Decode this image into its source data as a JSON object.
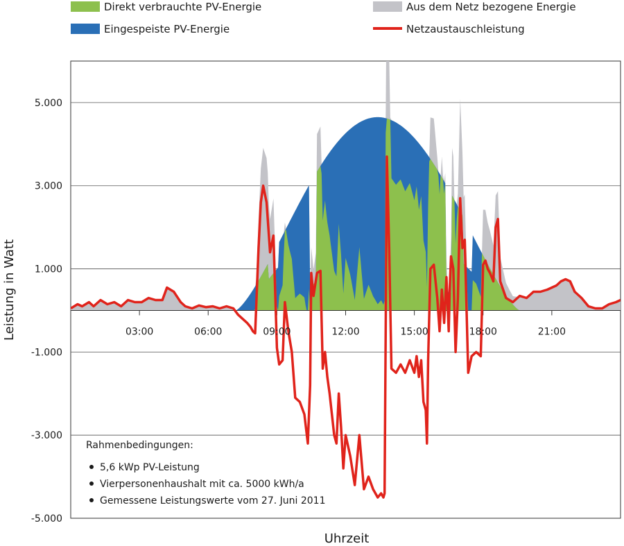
{
  "chart_data": {
    "type": "area",
    "xlabel": "Uhrzeit",
    "ylabel": "Leistung in Watt",
    "xlim": [
      0,
      24
    ],
    "ylim": [
      -5000,
      6000
    ],
    "x_ticks": [
      3,
      6,
      9,
      12,
      15,
      18,
      21
    ],
    "x_tick_labels": [
      "03:00",
      "06:00",
      "09:00",
      "12:00",
      "15:00",
      "18:00",
      "21:00"
    ],
    "y_ticks": [
      5000,
      3000,
      1000,
      -1000,
      -3000,
      -5000
    ],
    "y_tick_labels": [
      "5.000",
      "3.000",
      "1.000",
      "-1.000",
      "-3.000",
      "-5.000"
    ],
    "grid": true,
    "legend_position": "top",
    "colors": {
      "direct": "#8dc04d",
      "feedin": "#2a6fb6",
      "grid": "#c3c3c8",
      "exchange": "#e0231b"
    },
    "legend": [
      {
        "key": "direct",
        "label": "Direkt verbrauchte PV-Energie",
        "kind": "area"
      },
      {
        "key": "grid",
        "label": "Aus dem Netz bezogene Energie",
        "kind": "area"
      },
      {
        "key": "feedin",
        "label": "Eingespeiste PV-Energie",
        "kind": "area"
      },
      {
        "key": "exchange",
        "label": "Netzaustauschleistung",
        "kind": "line"
      }
    ],
    "annotation": {
      "title": "Rahmenbedingungen:",
      "items": [
        "5,6 kWp PV-Leistung",
        "Vierpersonenhaushalt mit ca. 5000 kWh/a",
        "Gemessene Leistungswerte vom 27. Juni 2011"
      ]
    },
    "series": [
      {
        "key": "exchange",
        "name": "Netzaustauschleistung",
        "x": [
          0.0,
          0.3,
          0.5,
          0.8,
          1.0,
          1.3,
          1.6,
          1.9,
          2.2,
          2.5,
          2.8,
          3.1,
          3.4,
          3.7,
          4.0,
          4.2,
          4.5,
          4.8,
          5.0,
          5.3,
          5.6,
          5.9,
          6.2,
          6.5,
          6.8,
          7.1,
          7.3,
          7.5,
          7.7,
          7.85,
          7.95,
          8.05,
          8.2,
          8.3,
          8.4,
          8.55,
          8.7,
          8.85,
          9.0,
          9.1,
          9.25,
          9.35,
          9.5,
          9.65,
          9.8,
          10.0,
          10.2,
          10.35,
          10.45,
          10.5,
          10.6,
          10.75,
          10.9,
          11.0,
          11.1,
          11.2,
          11.3,
          11.4,
          11.5,
          11.6,
          11.7,
          11.8,
          11.9,
          12.0,
          12.2,
          12.4,
          12.6,
          12.8,
          13.0,
          13.2,
          13.4,
          13.55,
          13.65,
          13.7,
          13.8,
          13.9,
          14.0,
          14.2,
          14.4,
          14.6,
          14.8,
          15.0,
          15.1,
          15.2,
          15.3,
          15.4,
          15.5,
          15.55,
          15.6,
          15.7,
          15.85,
          16.0,
          16.1,
          16.2,
          16.3,
          16.4,
          16.5,
          16.55,
          16.6,
          16.7,
          16.8,
          16.9,
          17.0,
          17.1,
          17.2,
          17.35,
          17.5,
          17.7,
          17.9,
          18.0,
          18.1,
          18.2,
          18.3,
          18.45,
          18.55,
          18.65,
          18.75,
          19.0,
          19.3,
          19.6,
          19.9,
          20.2,
          20.5,
          20.8,
          21.0,
          21.2,
          21.4,
          21.6,
          21.8,
          22.0,
          22.3,
          22.6,
          22.9,
          23.2,
          23.5,
          23.8,
          24.0
        ],
        "values": [
          50,
          150,
          100,
          200,
          100,
          250,
          150,
          200,
          100,
          250,
          200,
          200,
          300,
          250,
          250,
          550,
          450,
          200,
          100,
          50,
          120,
          80,
          100,
          50,
          100,
          50,
          -100,
          -200,
          -300,
          -400,
          -500,
          -550,
          1500,
          2600,
          3000,
          2600,
          1400,
          1800,
          -900,
          -1300,
          -1200,
          200,
          -500,
          -1000,
          -2100,
          -2200,
          -2500,
          -3200,
          -1800,
          900,
          350,
          900,
          950,
          -1400,
          -1000,
          -1600,
          -2000,
          -2500,
          -3000,
          -3200,
          -2000,
          -2800,
          -3800,
          -3000,
          -3500,
          -4200,
          -3000,
          -4300,
          -4000,
          -4300,
          -4500,
          -4400,
          -4500,
          -4400,
          3700,
          1500,
          -1400,
          -1500,
          -1300,
          -1500,
          -1200,
          -1500,
          -1100,
          -1600,
          -1200,
          -2200,
          -2400,
          -3200,
          -1200,
          1000,
          1100,
          300,
          -500,
          500,
          -300,
          800,
          -500,
          600,
          1300,
          1000,
          -1000,
          300,
          2700,
          1500,
          1700,
          -1500,
          -1100,
          -1000,
          -1100,
          1100,
          1200,
          1000,
          900,
          700,
          2000,
          2200,
          700,
          300,
          200,
          350,
          300,
          450,
          450,
          500,
          550,
          600,
          700,
          750,
          700,
          450,
          300,
          100,
          50,
          50,
          150,
          200,
          250
        ]
      }
    ]
  }
}
